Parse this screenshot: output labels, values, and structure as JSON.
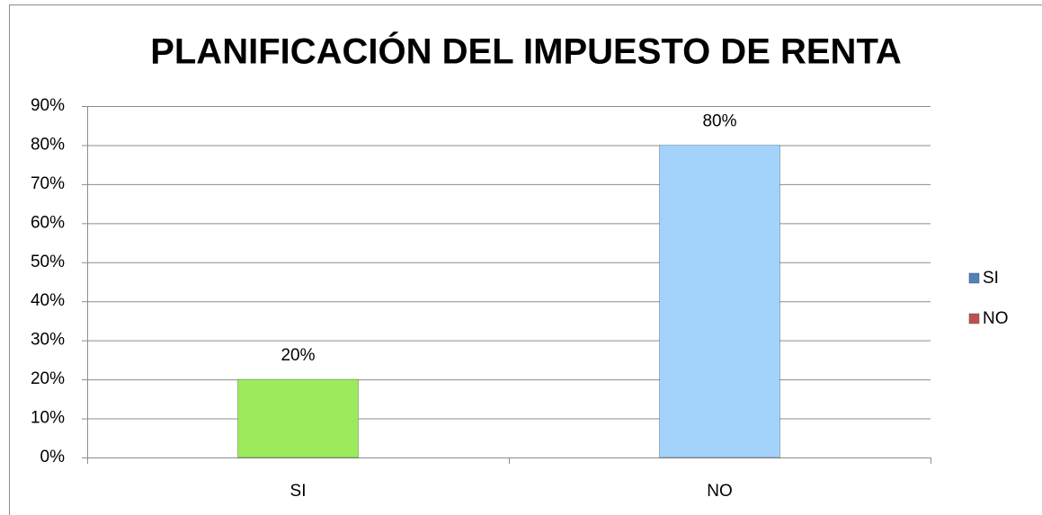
{
  "chart_data": {
    "type": "bar",
    "title": "PLANIFICACIÓN DEL IMPUESTO DE RENTA",
    "categories": [
      "SI",
      "NO"
    ],
    "values": [
      20,
      80
    ],
    "value_labels": [
      "20%",
      "80%"
    ],
    "colors": [
      "#9ceb5c",
      "#a3d3fb"
    ],
    "ylim": [
      0,
      90
    ],
    "yticks": [
      {
        "value": 0,
        "label": "0%"
      },
      {
        "value": 10,
        "label": "10%"
      },
      {
        "value": 20,
        "label": "20%"
      },
      {
        "value": 30,
        "label": "30%"
      },
      {
        "value": 40,
        "label": "40%"
      },
      {
        "value": 50,
        "label": "50%"
      },
      {
        "value": 60,
        "label": "60%"
      },
      {
        "value": 70,
        "label": "70%"
      },
      {
        "value": 80,
        "label": "80%"
      },
      {
        "value": 90,
        "label": "90%"
      }
    ],
    "grid": true,
    "legend": [
      {
        "name": "SI",
        "color": "#4f81bd"
      },
      {
        "name": "NO",
        "color": "#c0504d"
      }
    ],
    "legend_position": "right"
  }
}
